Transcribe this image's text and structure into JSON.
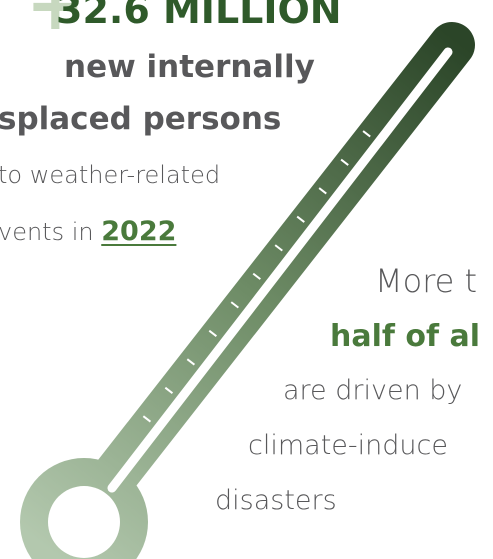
{
  "left_text": {
    "plus": "+",
    "headline": "32.6 MILLION",
    "line1": "new internally",
    "line2": "splaced persons",
    "line3": "to weather-related",
    "line4": "vents in",
    "year": "2022"
  },
  "right_text": {
    "line1": "More t",
    "line2": "half of al",
    "line3": "are driven by",
    "line4": "climate-induce",
    "line5": "disasters"
  }
}
